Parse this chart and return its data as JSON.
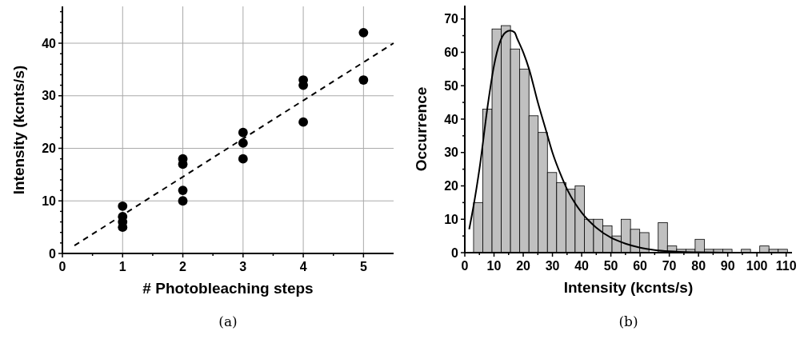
{
  "chart_data": [
    {
      "type": "scatter",
      "xlabel": "# Photobleaching steps",
      "ylabel": "Intensity (kcnts/s)",
      "annotations": [
        "(a)"
      ],
      "grid": true,
      "xlim": [
        0,
        5.5
      ],
      "ylim": [
        0,
        47
      ],
      "xticks": [
        0,
        {
          "value": 0.5,
          "label": null
        },
        1,
        {
          "value": 1.5,
          "label": null
        },
        2,
        {
          "value": 2.5,
          "label": null
        },
        3,
        {
          "value": 3.5,
          "label": null
        },
        4,
        {
          "value": 4.5,
          "label": null
        },
        5
      ],
      "yticks": [
        0,
        {
          "value": 2,
          "label": null
        },
        {
          "value": 4,
          "label": null
        },
        {
          "value": 6,
          "label": null
        },
        {
          "value": 8,
          "label": null
        },
        10,
        {
          "value": 12,
          "label": null
        },
        {
          "value": 14,
          "label": null
        },
        {
          "value": 16,
          "label": null
        },
        {
          "value": 18,
          "label": null
        },
        20,
        {
          "value": 22,
          "label": null
        },
        {
          "value": 24,
          "label": null
        },
        {
          "value": 26,
          "label": null
        },
        {
          "value": 28,
          "label": null
        },
        30,
        {
          "value": 32,
          "label": null
        },
        {
          "value": 34,
          "label": null
        },
        {
          "value": 36,
          "label": null
        },
        {
          "value": 38,
          "label": null
        },
        40,
        {
          "value": 42,
          "label": null
        },
        {
          "value": 44,
          "label": null
        },
        {
          "value": 46,
          "label": null
        }
      ],
      "series": [
        {
          "marker": "circle",
          "color": "#000000",
          "x": [
            1,
            1,
            1,
            1,
            2,
            2,
            2,
            2,
            3,
            3,
            3,
            4,
            4,
            4,
            5,
            5
          ],
          "values": [
            9,
            7,
            6,
            5,
            18,
            17,
            12,
            10,
            23,
            21,
            18,
            33,
            32,
            25,
            42,
            33
          ]
        },
        {
          "type": "line",
          "line_style": "dashed",
          "color": "#000000",
          "x": [
            0.2,
            5.5
          ],
          "values": [
            1.5,
            40
          ]
        }
      ]
    },
    {
      "type": "histogram",
      "xlabel": "Intensity (kcnts/s)",
      "ylabel": "Occurrence",
      "annotations": [
        "(b)"
      ],
      "xlim": [
        0,
        112
      ],
      "ylim": [
        0,
        74
      ],
      "xticks": [
        0,
        {
          "value": 5,
          "label": null
        },
        10,
        {
          "value": 15,
          "label": null
        },
        20,
        {
          "value": 25,
          "label": null
        },
        30,
        {
          "value": 35,
          "label": null
        },
        40,
        {
          "value": 45,
          "label": null
        },
        50,
        {
          "value": 55,
          "label": null
        },
        60,
        {
          "value": 65,
          "label": null
        },
        70,
        {
          "value": 75,
          "label": null
        },
        80,
        {
          "value": 85,
          "label": null
        },
        90,
        {
          "value": 95,
          "label": null
        },
        100,
        {
          "value": 105,
          "label": null
        },
        110
      ],
      "yticks": [
        0,
        {
          "value": 5,
          "label": null
        },
        10,
        {
          "value": 15,
          "label": null
        },
        20,
        {
          "value": 25,
          "label": null
        },
        30,
        {
          "value": 35,
          "label": null
        },
        40,
        {
          "value": 45,
          "label": null
        },
        50,
        {
          "value": 55,
          "label": null
        },
        60,
        {
          "value": 65,
          "label": null
        },
        70
      ],
      "series": [
        {
          "color": "#c0c0c0",
          "bins": [
            3,
            6.16,
            9.32,
            12.48,
            15.64,
            18.8,
            21.96,
            25.12,
            28.28,
            31.44,
            34.6,
            37.76,
            40.92,
            44.08,
            47.24,
            50.4,
            53.56,
            56.72,
            59.88,
            63.04,
            66.2,
            69.36,
            72.52,
            75.68,
            78.84,
            82,
            85.16,
            88.32,
            91.48,
            94.64,
            97.8,
            100.96,
            104.12,
            107.28,
            110.44
          ],
          "values": [
            15,
            43,
            67,
            68,
            61,
            55,
            41,
            36,
            24,
            21,
            19,
            20,
            10,
            10,
            8,
            5,
            10,
            7,
            6,
            null,
            9,
            2,
            1,
            1,
            4,
            1,
            1,
            1,
            0,
            1,
            0,
            2,
            1,
            1
          ]
        },
        {
          "type": "line",
          "line_style": "solid",
          "color": "#000000",
          "x": [
            1.5,
            3,
            5,
            8,
            10,
            12,
            14,
            15.5,
            17,
            18,
            20,
            22,
            25,
            28,
            30,
            33,
            35,
            40,
            45,
            50,
            55,
            60,
            65,
            70,
            80,
            90,
            100,
            110
          ],
          "values": [
            7,
            14,
            25,
            45,
            56,
            63,
            66,
            66.5,
            66,
            64,
            60,
            55,
            45,
            36,
            30,
            23,
            19,
            12,
            7.5,
            4.5,
            2.7,
            1.5,
            0.8,
            0.4,
            0.1,
            0,
            0,
            0
          ]
        }
      ]
    }
  ]
}
